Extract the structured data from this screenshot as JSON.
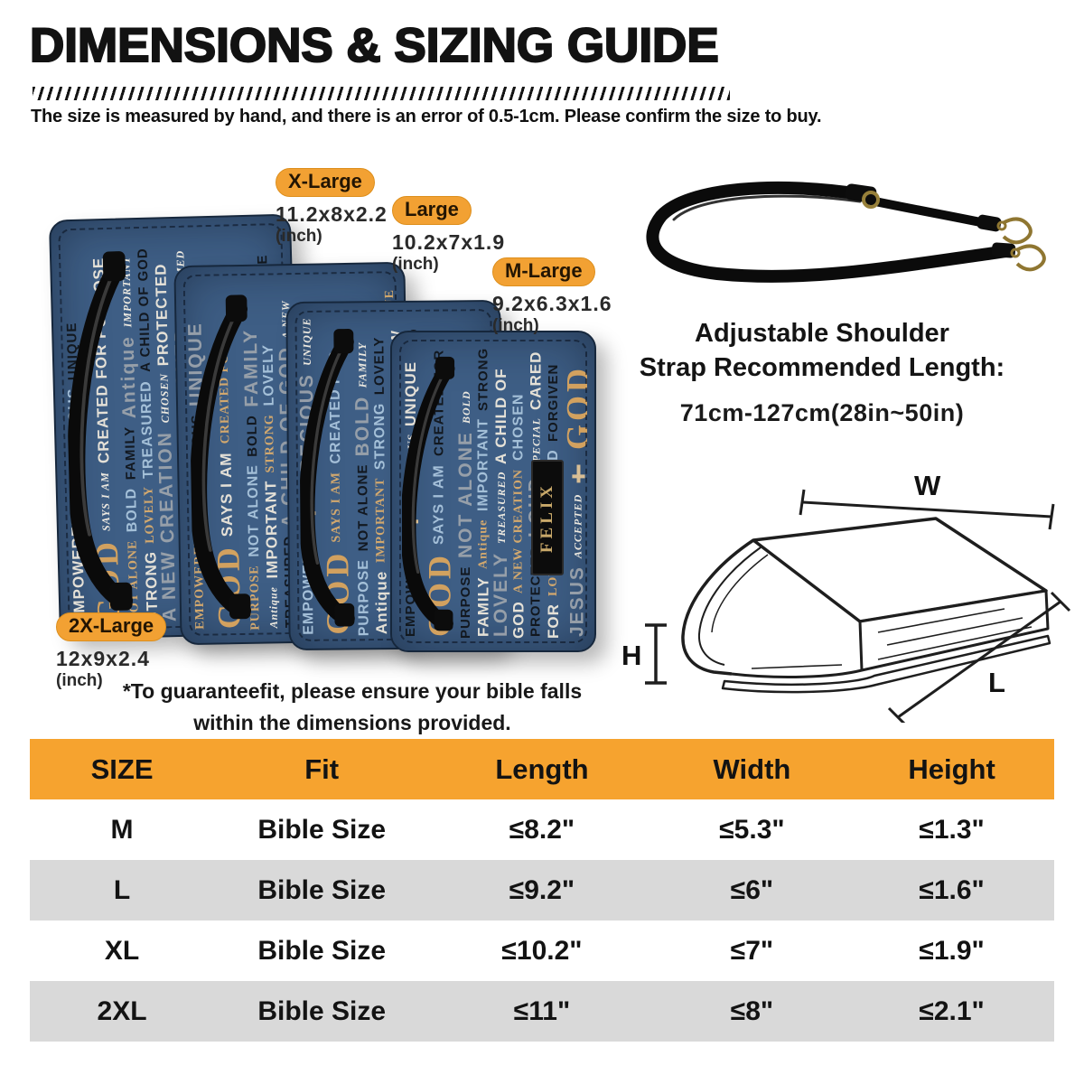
{
  "page": {
    "title": "DIMENSIONS & SIZING GUIDE",
    "subtitle": "The size is measured by hand, and there is an error of 0.5-1cm. Please confirm the size to buy."
  },
  "sizes": [
    {
      "label": "X-Large",
      "dims": "11.2x8x2.2",
      "unit": "(inch)"
    },
    {
      "label": "Large",
      "dims": "10.2x7x1.9",
      "unit": "(inch)"
    },
    {
      "label": "M-Large",
      "dims": "9.2x6.3x1.6",
      "unit": "(inch)"
    },
    {
      "label": "2X-Large",
      "dims": "12x9x2.4",
      "unit": "(inch)"
    }
  ],
  "strap": {
    "heading_line1": "Adjustable Shoulder",
    "heading_line2": "Strap Recommended Length:",
    "length": "71cm-127cm(28in~50in)"
  },
  "book_diagram": {
    "width_label": "W",
    "height_label": "H",
    "length_label": "L"
  },
  "note": {
    "line1": "*To guaranteefit, please ensure your bible falls",
    "line2": "within the dimensions provided."
  },
  "cover_name": "FELIX",
  "cover_words": [
    "EMPOWERED",
    "✝",
    "PRECIOUS",
    "UNIQUE",
    "GOD",
    "SAYS I AM",
    "CREATED FOR PURPOSE",
    "NOT ALONE",
    "BOLD",
    "FAMILY",
    "Antique",
    "IMPORTANT",
    "STRONG",
    "LOVELY",
    "TREASURED",
    "A CHILD OF GOD",
    "A NEW CREATION",
    "CHOSEN",
    "PROTECTED",
    "LOUD",
    "SPECIAL",
    "CARED FOR",
    "LOVED",
    "REDEEMED",
    "FORGIVEN",
    "JESUS",
    "ACCEPTED",
    "✝",
    "GOD",
    "PRECIOUS"
  ],
  "colors": {
    "accent_orange": "#F6A32F",
    "badge_orange": "#F2A133",
    "table_alt_gray": "#D9D9D9",
    "denim_blue": "#3E5E85",
    "gold": "#D9A55E",
    "strap_black": "#0B0B0B"
  },
  "table": {
    "headers": [
      "SIZE",
      "Fit",
      "Length",
      "Width",
      "Height"
    ],
    "rows": [
      [
        "M",
        "Bible Size",
        "≤8.2\"",
        "≤5.3\"",
        "≤1.3\""
      ],
      [
        "L",
        "Bible Size",
        "≤9.2\"",
        "≤6\"",
        "≤1.6\""
      ],
      [
        "XL",
        "Bible Size",
        "≤10.2\"",
        "≤7\"",
        "≤1.9\""
      ],
      [
        "2XL",
        "Bible Size",
        "≤11\"",
        "≤8\"",
        "≤2.1\""
      ]
    ]
  }
}
